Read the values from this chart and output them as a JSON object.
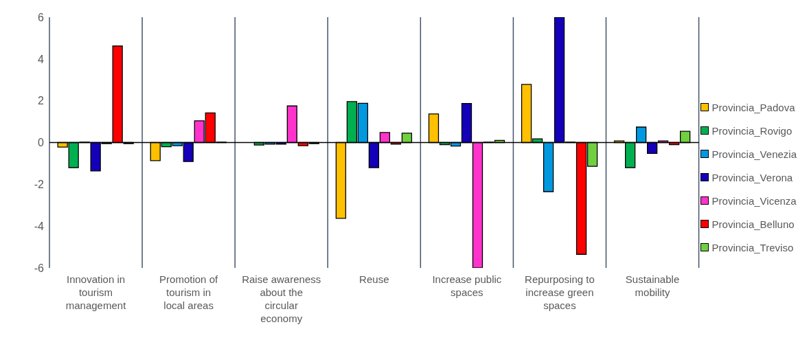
{
  "chart_data": {
    "type": "bar",
    "categories": [
      "Innovation in tourism management",
      "Promotion of tourism in local areas",
      "Raise awareness about the circular economy",
      "Reuse",
      "Increase public spaces",
      "Repurposing to increase green spaces",
      "Sustainable mobility"
    ],
    "series": [
      {
        "name": "Provincia_Padova",
        "color": "#ffc000",
        "values": [
          -0.22,
          -0.87,
          0,
          -3.63,
          1.37,
          2.78,
          0.08
        ]
      },
      {
        "name": "Provincia_Rovigo",
        "color": "#00b050",
        "values": [
          -1.2,
          -0.2,
          -0.12,
          1.96,
          -0.1,
          0.18,
          -1.2
        ]
      },
      {
        "name": "Provincia_Venezia",
        "color": "#0099e0",
        "values": [
          0.02,
          -0.15,
          -0.08,
          1.88,
          -0.17,
          -2.35,
          0.74
        ]
      },
      {
        "name": "Provincia_Verona",
        "color": "#1400b8",
        "values": [
          -1.36,
          -0.91,
          -0.08,
          -1.2,
          1.87,
          6,
          -0.52
        ]
      },
      {
        "name": "Provincia_Vicenza",
        "color": "#ff33cc",
        "values": [
          -0.05,
          1.04,
          1.75,
          0.48,
          -6,
          0.02,
          0.08
        ]
      },
      {
        "name": "Provincia_Belluno",
        "color": "#ff0000",
        "values": [
          4.62,
          1.42,
          -0.15,
          -0.08,
          0.02,
          -5.35,
          -0.1
        ]
      },
      {
        "name": "Provincia_Treviso",
        "color": "#70d040",
        "values": [
          -0.05,
          0.02,
          -0.05,
          0.45,
          0.1,
          -1.14,
          0.54
        ]
      }
    ],
    "ylim": [
      -6,
      6
    ],
    "yticks": [
      -6,
      -4,
      -2,
      0,
      2,
      4,
      6
    ],
    "grid": "x",
    "legend": "right"
  }
}
